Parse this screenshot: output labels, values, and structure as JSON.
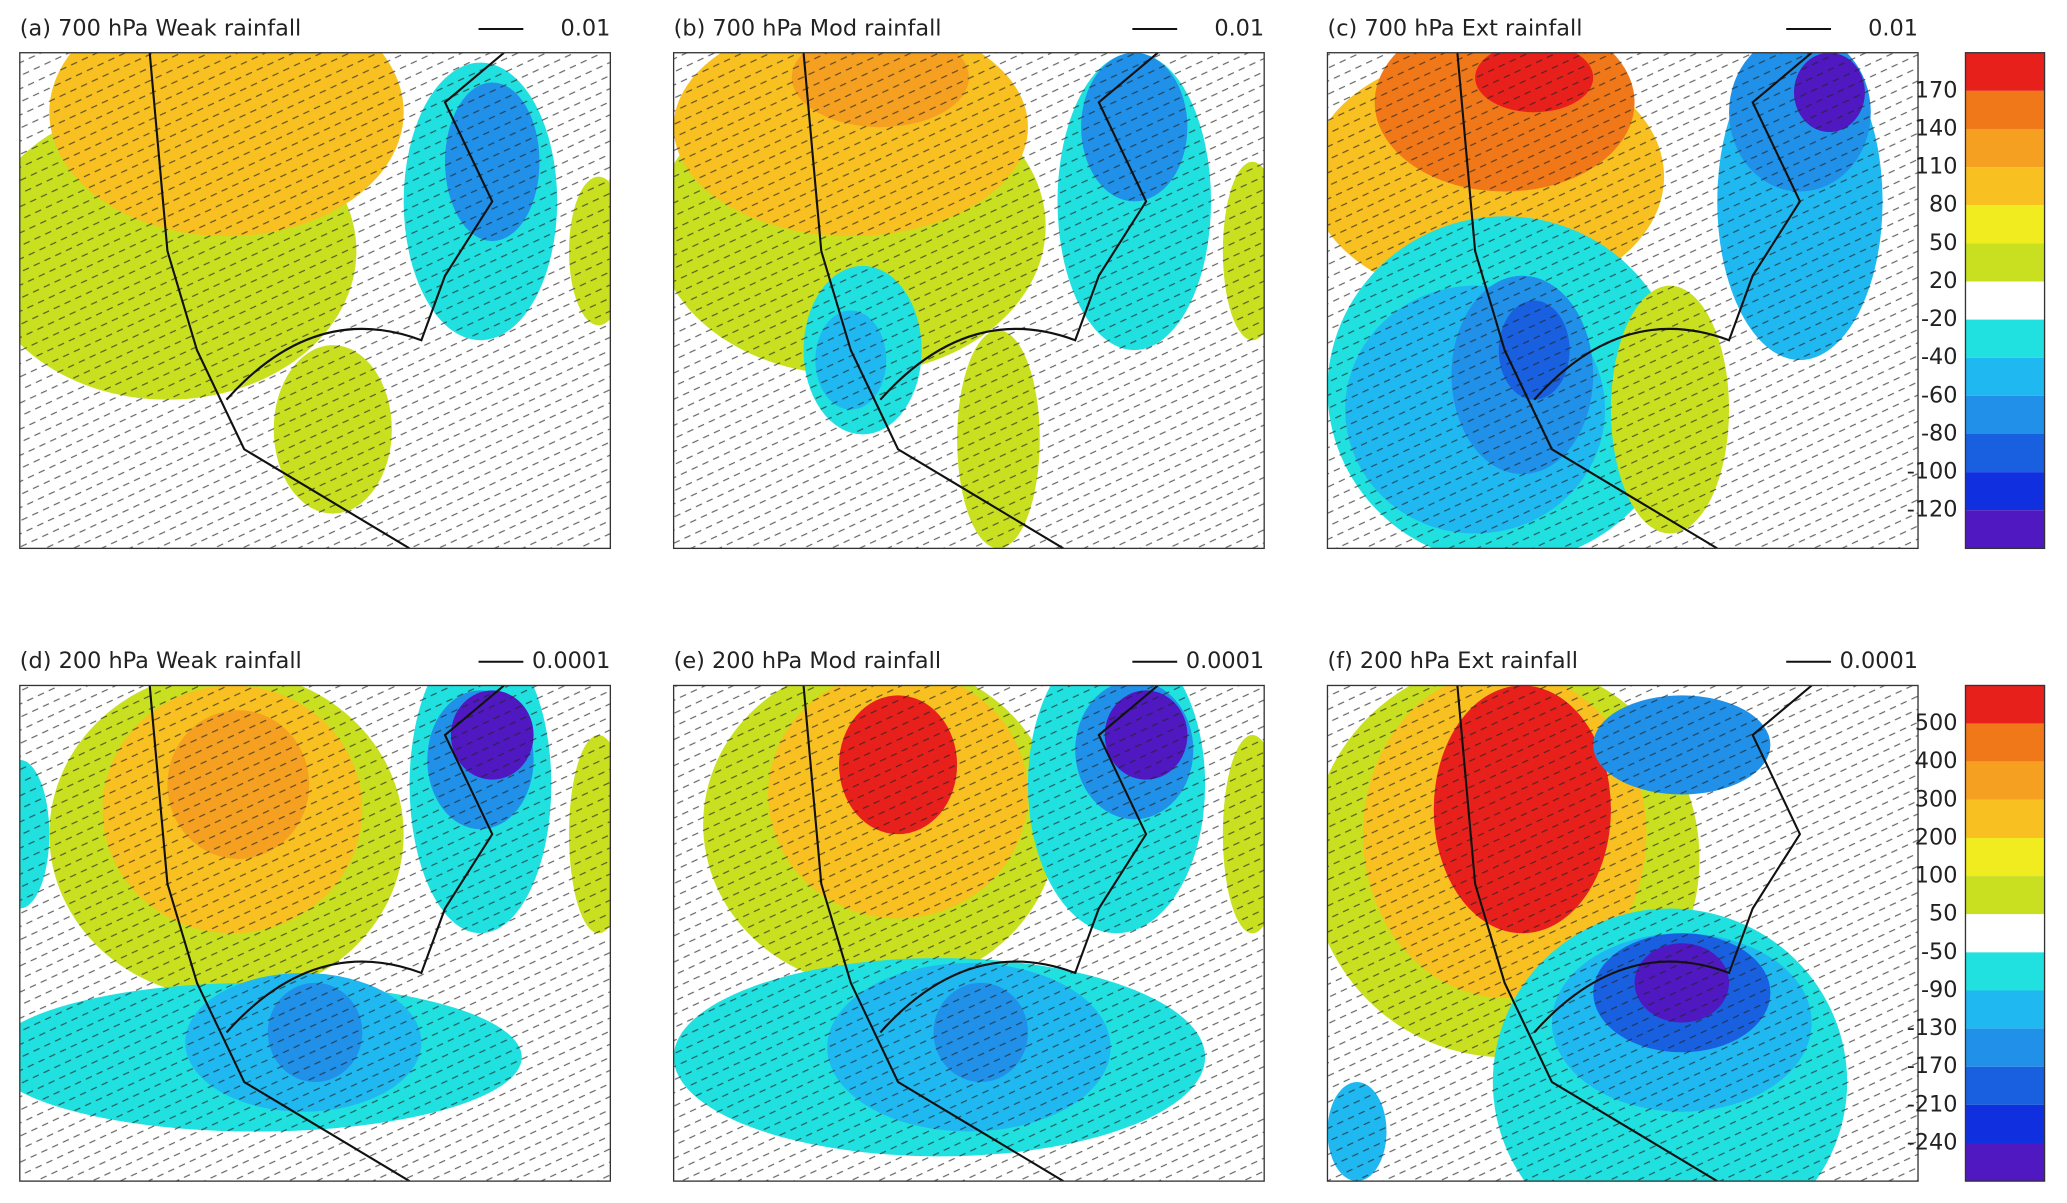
{
  "panels": [
    {
      "title": "(a) 700 hPa   Weak rainfall",
      "scale": "0.01"
    },
    {
      "title": "(b) 700 hPa   Mod  rainfall",
      "scale": "0.01"
    },
    {
      "title": "(c) 700 hPa   Ext  rainfall",
      "scale": "0.01"
    },
    {
      "title": "(d) 200 hPa   Weak rainfall",
      "scale": "0.0001"
    },
    {
      "title": "(e) 200 hPa   Mod  rainfall",
      "scale": "0.0001"
    },
    {
      "title": "(f) 200 hPa   Ext  rainfall",
      "scale": "0.0001"
    }
  ],
  "colorbars": [
    {
      "labels": [
        170,
        140,
        110,
        80,
        50,
        20,
        -20,
        -40,
        -60,
        -80,
        -100,
        -120
      ],
      "colors": [
        "#e8201c",
        "#f07818",
        "#f5a020",
        "#f8c020",
        "#f0ec20",
        "#c8e020",
        "#ffffff",
        "#20e0e0",
        "#20b8f0",
        "#2090e8",
        "#1860e0",
        "#1030e0",
        "#5018c0"
      ]
    },
    {
      "labels": [
        500,
        400,
        300,
        200,
        100,
        50,
        -50,
        -90,
        -130,
        -170,
        -210,
        -240
      ],
      "colors": [
        "#e8201c",
        "#f07818",
        "#f5a020",
        "#f8c020",
        "#f0ec20",
        "#c8e020",
        "#ffffff",
        "#20e0e0",
        "#20b8f0",
        "#2090e8",
        "#1860e0",
        "#1030e0",
        "#5018c0"
      ]
    }
  ]
}
